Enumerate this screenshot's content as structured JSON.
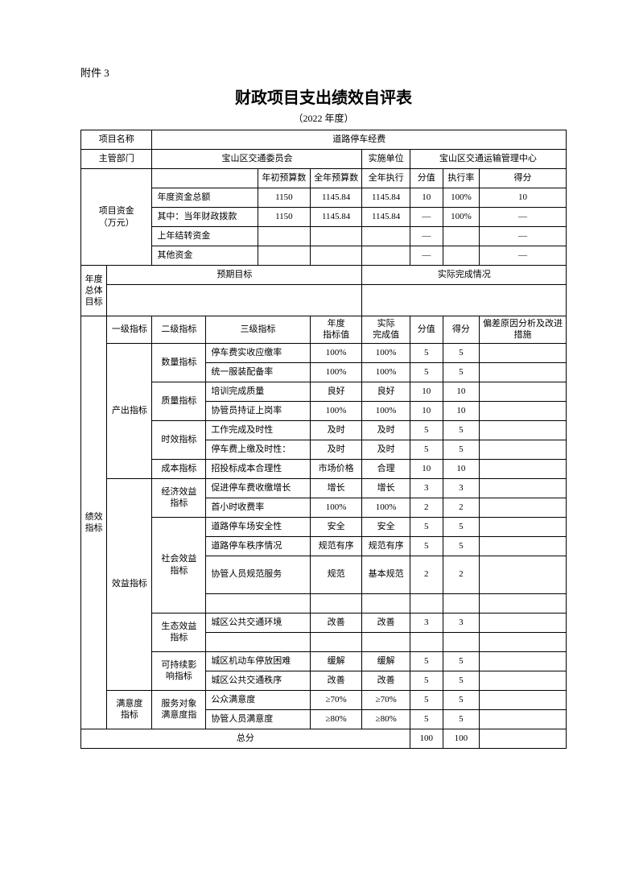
{
  "attachment": "附件 3",
  "title": "财政项目支出绩效自评表",
  "subtitle": "（2022 年度）",
  "header": {
    "projectNameLabel": "项目名称",
    "projectName": "道路停车经费",
    "deptLabel": "主管部门",
    "dept": "宝山区交通委员会",
    "implDeptLabel": "实施单位",
    "implDept": "宝山区交通运输管理中心"
  },
  "fund": {
    "rowLabel": "项目资金\n（万元）",
    "cols": [
      "",
      "年初预算数",
      "全年预算数",
      "全年执行",
      "分值",
      "执行率",
      "得分"
    ],
    "rows": [
      {
        "label": "年度资金总额",
        "c1": "1150",
        "c2": "1145.84",
        "c3": "1145.84",
        "c4": "10",
        "c5": "100%",
        "c6": "10"
      },
      {
        "label": "其中：当年财政拨款",
        "c1": "1150",
        "c2": "1145.84",
        "c3": "1145.84",
        "c4": "—",
        "c5": "100%",
        "c6": "—"
      },
      {
        "label": "上年结转资金",
        "c1": "",
        "c2": "",
        "c3": "",
        "c4": "—",
        "c5": "",
        "c6": "—"
      },
      {
        "label": "其他资金",
        "c1": "",
        "c2": "",
        "c3": "",
        "c4": "—",
        "c5": "",
        "c6": "—"
      }
    ]
  },
  "goal": {
    "rowLabel": "年度总体目标",
    "expected": "预期目标",
    "actual": "实际完成情况",
    "expectedVal": "",
    "actualVal": ""
  },
  "indicator": {
    "rowLabel": "绩效指标",
    "headers": [
      "一级指标",
      "二级指标",
      "三级指标",
      "年度\n指标值",
      "实际\n完成值",
      "分值",
      "得分",
      "偏差原因分析及改进\n措施"
    ],
    "totalLabel": "总分",
    "totalScore": "100",
    "totalGot": "100",
    "groups": [
      {
        "l1": "产出指标",
        "l1span": 7,
        "subs": [
          {
            "l2": "数量指标",
            "l2span": 2,
            "rows": [
              {
                "l3": "停车费实收应缴率",
                "tv": "100%",
                "av": "100%",
                "sv": "5",
                "gv": "5"
              },
              {
                "l3": "统一服装配备率",
                "tv": "100%",
                "av": "100%",
                "sv": "5",
                "gv": "5"
              }
            ]
          },
          {
            "l2": "质量指标",
            "l2span": 2,
            "rows": [
              {
                "l3": "培训完成质量",
                "tv": "良好",
                "av": "良好",
                "sv": "10",
                "gv": "10"
              },
              {
                "l3": "协管员持证上岗率",
                "tv": "100%",
                "av": "100%",
                "sv": "10",
                "gv": "10"
              }
            ]
          },
          {
            "l2": "时效指标",
            "l2span": 2,
            "rows": [
              {
                "l3": "工作完成及时性",
                "tv": "及时",
                "av": "及时",
                "sv": "5",
                "gv": "5"
              },
              {
                "l3": "停车费上缴及时性：",
                "tv": "及时",
                "av": "及时",
                "sv": "5",
                "gv": "5"
              }
            ]
          },
          {
            "l2": "成本指标",
            "l2span": 1,
            "rows": [
              {
                "l3": "招投标成本合理性",
                "tv": "市场价格",
                "av": "合理",
                "sv": "10",
                "gv": "10"
              }
            ]
          }
        ]
      },
      {
        "l1": "效益指标",
        "l1span": 10,
        "subs": [
          {
            "l2": "经济效益\n指标",
            "l2span": 2,
            "rows": [
              {
                "l3": "促进停车费收缴增长",
                "tv": "增长",
                "av": "增长",
                "sv": "3",
                "gv": "3"
              },
              {
                "l3": "首小时收费率",
                "tv": "100%",
                "av": "100%",
                "sv": "2",
                "gv": "2"
              }
            ]
          },
          {
            "l2": "社会效益\n指标",
            "l2span": 4,
            "rows": [
              {
                "l3": "道路停车场安全性",
                "tv": "安全",
                "av": "安全",
                "sv": "5",
                "gv": "5"
              },
              {
                "l3": "道路停车秩序情况",
                "tv": "规范有序",
                "av": "规范有序",
                "sv": "5",
                "gv": "5"
              },
              {
                "l3": "协管人员规范服务",
                "tv": "规范",
                "av": "基本规范",
                "sv": "2",
                "gv": "2",
                "tall": true
              },
              {
                "l3": "",
                "tv": "",
                "av": "",
                "sv": "",
                "gv": ""
              }
            ]
          },
          {
            "l2": "生态效益\n指标",
            "l2span": 2,
            "rows": [
              {
                "l3": "城区公共交通环境",
                "tv": "改善",
                "av": "改善",
                "sv": "3",
                "gv": "3"
              },
              {
                "l3": "",
                "tv": "",
                "av": "",
                "sv": "",
                "gv": ""
              }
            ]
          },
          {
            "l2": "可持续影\n响指标",
            "l2span": 2,
            "rows": [
              {
                "l3": "城区机动车停放困难",
                "tv": "缓解",
                "av": "缓解",
                "sv": "5",
                "gv": "5"
              },
              {
                "l3": "城区公共交通秩序",
                "tv": "改善",
                "av": "改善",
                "sv": "5",
                "gv": "5"
              }
            ]
          }
        ]
      },
      {
        "l1": "满意度\n指标",
        "l1span": 2,
        "subs": [
          {
            "l2": "服务对象\n满意度指",
            "l2span": 2,
            "rows": [
              {
                "l3": "公众满意度",
                "tv": "≥70%",
                "av": "≥70%",
                "sv": "5",
                "gv": "5"
              },
              {
                "l3": "协管人员满意度",
                "tv": "≥80%",
                "av": "≥80%",
                "sv": "5",
                "gv": "5"
              }
            ]
          }
        ]
      }
    ]
  }
}
